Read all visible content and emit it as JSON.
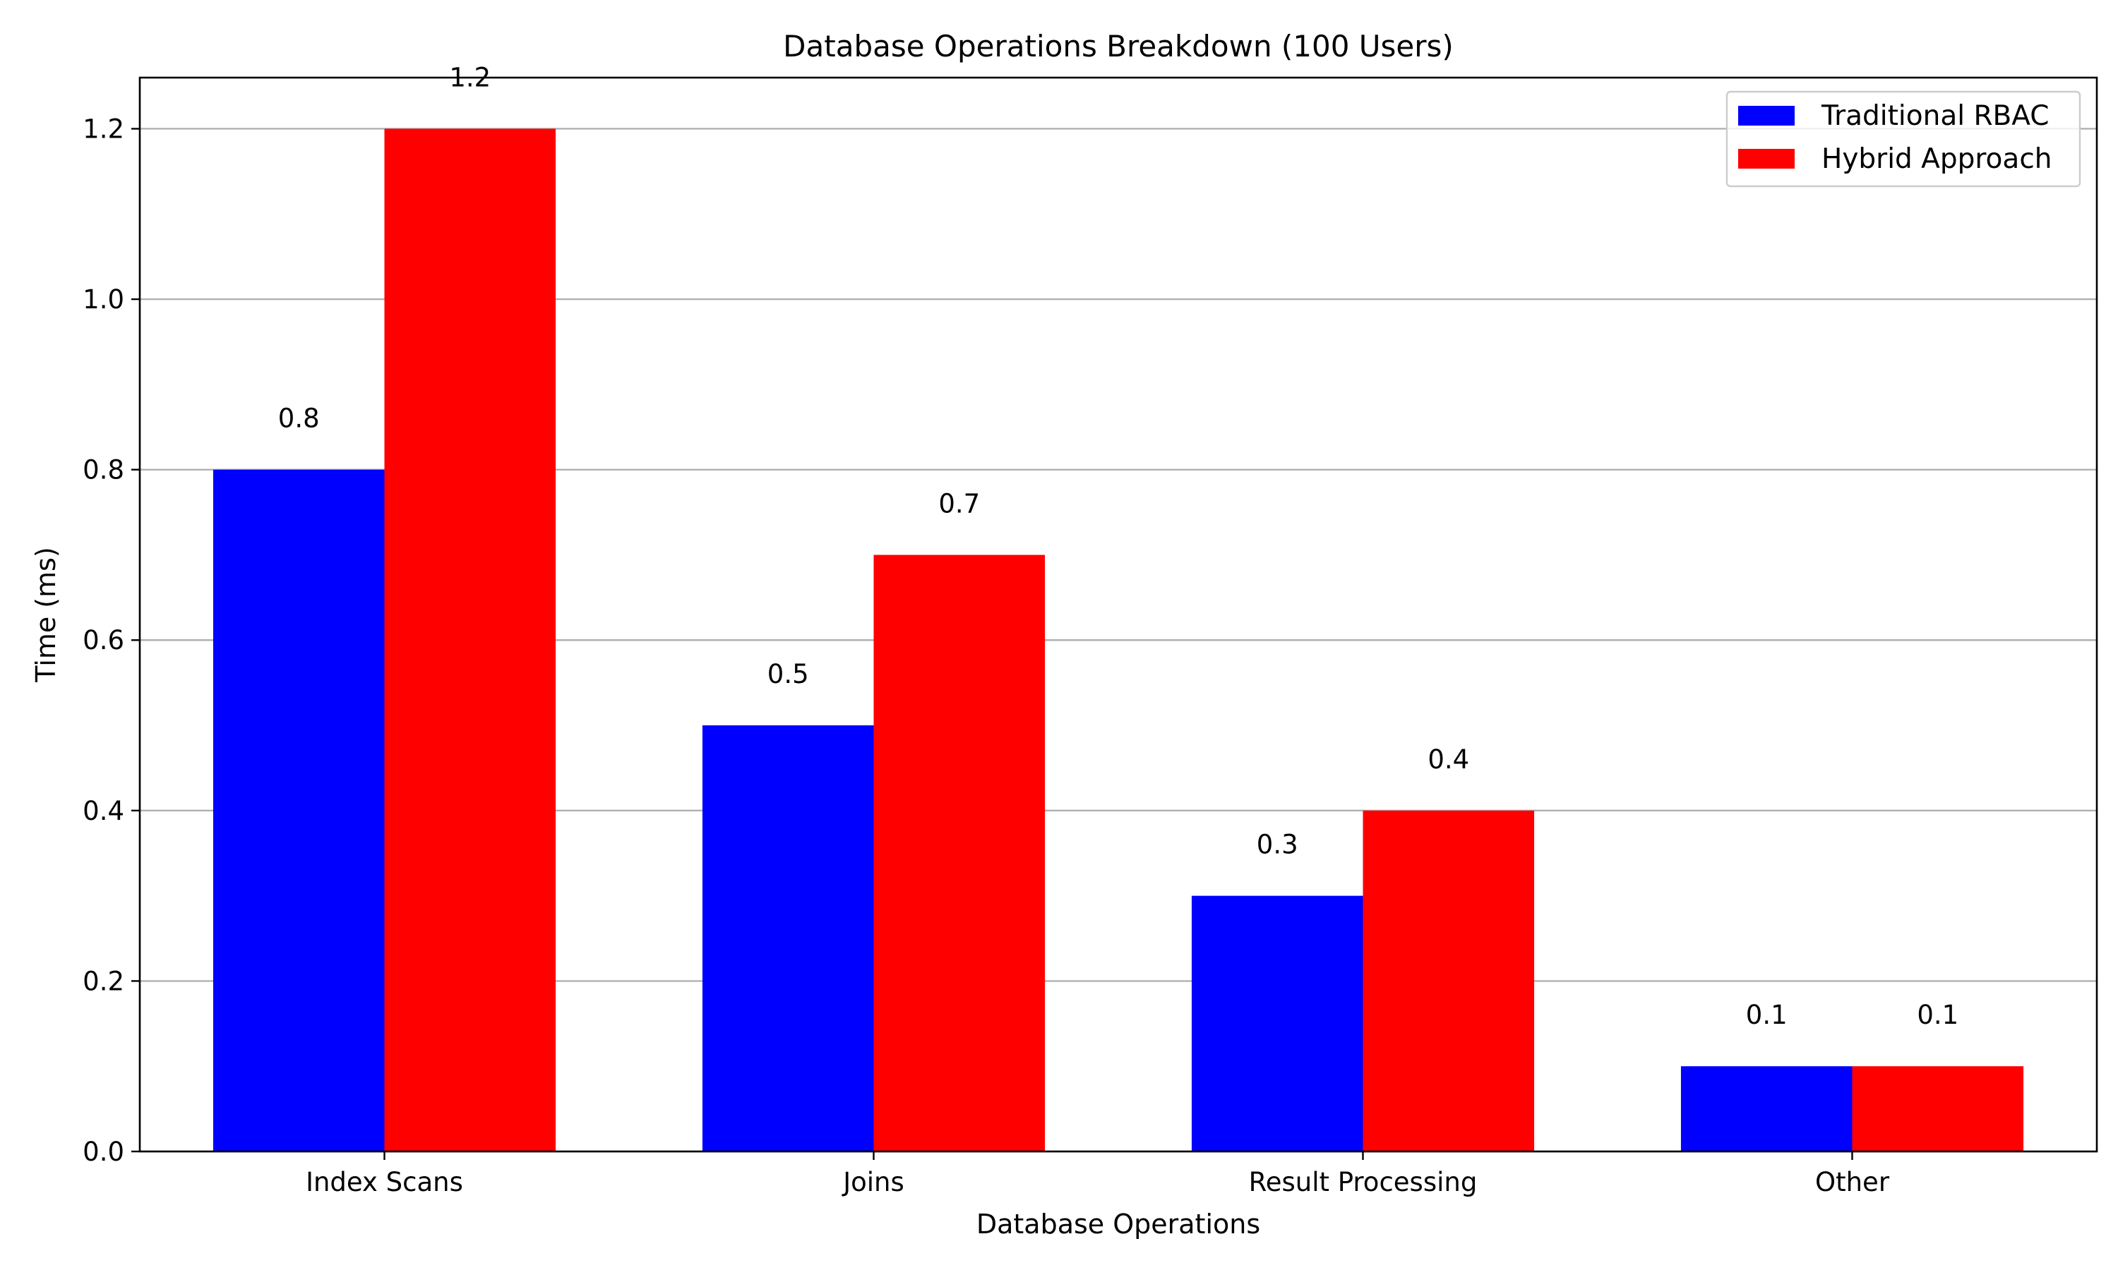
{
  "chart_data": {
    "type": "bar",
    "title": "Database Operations Breakdown (100 Users)",
    "xlabel": "Database Operations",
    "ylabel": "Time (ms)",
    "categories": [
      "Index Scans",
      "Joins",
      "Result Processing",
      "Other"
    ],
    "series": [
      {
        "name": "Traditional RBAC",
        "values": [
          0.8,
          0.5,
          0.3,
          0.1
        ],
        "color": "#0000ff"
      },
      {
        "name": "Hybrid Approach",
        "values": [
          1.2,
          0.7,
          0.4,
          0.1
        ],
        "color": "#ff0000"
      }
    ],
    "ylim": [
      0,
      1.26
    ],
    "yticks": [
      "0.0",
      "0.2",
      "0.4",
      "0.6",
      "0.8",
      "1.0",
      "1.2"
    ],
    "grid": true,
    "legend_position": "top-right"
  }
}
